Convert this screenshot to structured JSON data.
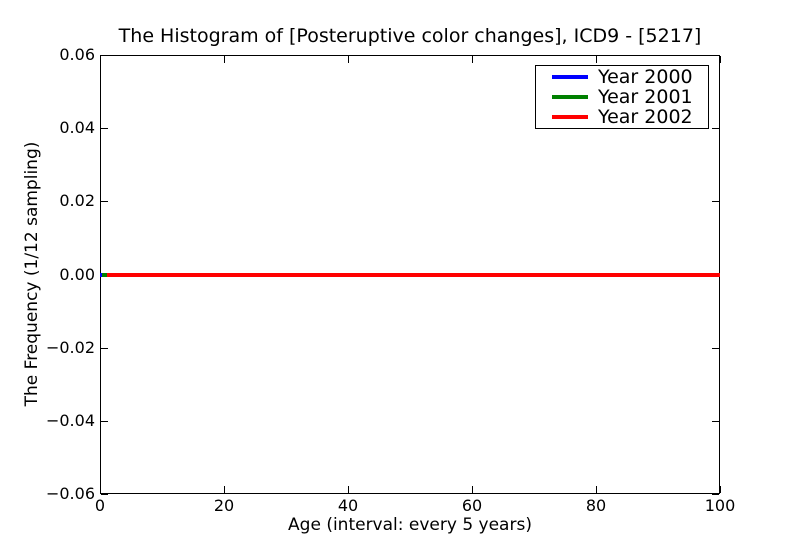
{
  "chart_data": {
    "type": "line",
    "title": "The Histogram of [Posteruptive color changes], ICD9 - [5217]",
    "xlabel": "Age (interval: every 5 years)",
    "ylabel": "The Frequency (1/12 sampling)",
    "xlim": [
      0,
      100
    ],
    "ylim": [
      -0.06,
      0.06
    ],
    "xticks": [
      0,
      20,
      40,
      60,
      80,
      100
    ],
    "xtick_labels": [
      "0",
      "20",
      "40",
      "60",
      "80",
      "100"
    ],
    "yticks": [
      0.06,
      0.04,
      0.02,
      0.0,
      -0.02,
      -0.04,
      -0.06
    ],
    "ytick_labels": [
      "0.06",
      "0.04",
      "0.02",
      "0.00",
      "−0.02",
      "−0.04",
      "−0.06"
    ],
    "grid": false,
    "legend": {
      "position": "upper right",
      "entries": [
        {
          "label": "Year 2000",
          "color": "#0000ff"
        },
        {
          "label": "Year 2001",
          "color": "#008000"
        },
        {
          "label": "Year 2002",
          "color": "#ff0000"
        }
      ]
    },
    "series": [
      {
        "name": "Year 2000",
        "color": "#0000ff",
        "x": [
          0,
          100
        ],
        "y": [
          0,
          0
        ]
      },
      {
        "name": "Year 2001",
        "color": "#008000",
        "x": [
          0.4,
          100
        ],
        "y": [
          0,
          0
        ]
      },
      {
        "name": "Year 2002",
        "color": "#ff0000",
        "x": [
          1.2,
          100
        ],
        "y": [
          0,
          0
        ]
      }
    ]
  }
}
